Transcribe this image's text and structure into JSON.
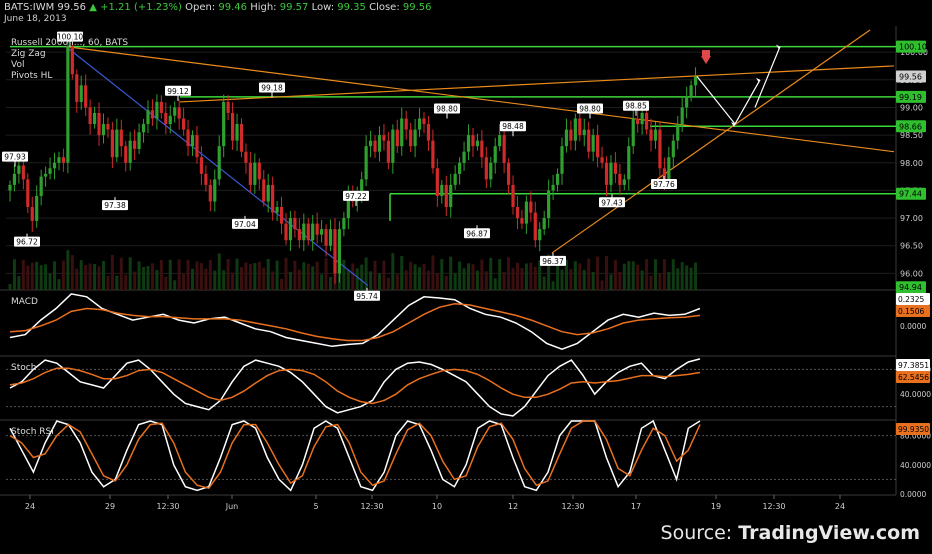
{
  "header": {
    "symbol": "BATS:IWM",
    "last": "99.56",
    "change": "+1.21 (+1.23%)",
    "open_label": "Open:",
    "open": "99.46",
    "high_label": "High:",
    "high": "99.57",
    "low_label": "Low:",
    "low": "99.35",
    "close_label": "Close:",
    "close": "99.56",
    "date": "June 18, 2013"
  },
  "source": {
    "prefix": "Source: ",
    "brand": "TradingView.com"
  },
  "colors": {
    "background": "#000000",
    "up_candle": "#2fa02f",
    "down_candle": "#d02a2a",
    "support_line": "#3ad83a",
    "trend_orange": "#e98a1c",
    "trend_blue": "#3a5ad8",
    "macd_line": "#ffffff",
    "signal_line": "#e8701e",
    "grid": "#1e1e1e"
  },
  "chart_data": [
    {
      "type": "candlestick",
      "title": "Russell 2000 I..., 60, BATS",
      "legend": [
        "Russell 2000 I..., 60, BATS",
        "Zig Zag",
        "Vol",
        "Pivots HL"
      ],
      "ylim": [
        95.7,
        100.4
      ],
      "y_ticks": [
        "96.00",
        "96.50",
        "97.00",
        "97.50",
        "98.00",
        "98.50",
        "99.00",
        "99.50",
        "100.00"
      ],
      "x_ticks": [
        "24",
        "29",
        "12:30",
        "Jun",
        "5",
        "12:30",
        "10",
        "12",
        "12:30",
        "17",
        "19",
        "12:30",
        "24"
      ],
      "closes": [
        97.6,
        97.8,
        97.95,
        97.7,
        97.2,
        96.95,
        97.4,
        97.75,
        97.8,
        97.9,
        98.0,
        98.1,
        98.0,
        100.1,
        99.6,
        99.1,
        99.4,
        99.0,
        98.7,
        98.9,
        98.5,
        98.7,
        98.6,
        98.1,
        98.6,
        98.3,
        98.0,
        98.4,
        98.25,
        98.55,
        98.7,
        98.95,
        98.8,
        99.1,
        98.9,
        98.7,
        98.85,
        99.0,
        98.8,
        98.6,
        98.3,
        98.5,
        98.1,
        97.8,
        97.6,
        97.3,
        97.7,
        98.3,
        99.1,
        98.9,
        98.4,
        98.7,
        98.2,
        98.0,
        97.6,
        98.0,
        97.7,
        97.3,
        97.6,
        97.1,
        97.2,
        96.9,
        96.6,
        97.0,
        96.8,
        96.6,
        96.9,
        96.6,
        96.9,
        96.7,
        96.8,
        96.5,
        96.8,
        96.0,
        96.8,
        97.0,
        97.4,
        97.3,
        97.45,
        97.7,
        98.3,
        98.4,
        98.2,
        98.5,
        98.4,
        98.0,
        98.6,
        98.3,
        98.8,
        98.6,
        98.3,
        98.6,
        98.8,
        98.7,
        98.4,
        97.9,
        97.4,
        97.6,
        97.2,
        97.6,
        97.8,
        98.0,
        98.2,
        98.5,
        98.3,
        98.4,
        98.1,
        97.7,
        98.0,
        98.3,
        98.5,
        98.0,
        97.6,
        97.2,
        97.0,
        96.9,
        97.3,
        97.1,
        96.6,
        96.8,
        97.0,
        97.5,
        97.6,
        97.8,
        98.3,
        98.6,
        98.4,
        98.8,
        98.5,
        98.6,
        98.2,
        98.5,
        98.1,
        98.0,
        97.6,
        98.0,
        97.8,
        97.6,
        97.7,
        98.3,
        98.8,
        98.7,
        98.9,
        98.6,
        98.4,
        98.6,
        97.9,
        97.7,
        98.1,
        98.4,
        98.7,
        99.0,
        99.2,
        99.4,
        99.56
      ],
      "last_price": "99.56",
      "pivots": [
        {
          "label": "97.93",
          "value": 97.93,
          "kind": "high"
        },
        {
          "label": "96.72",
          "value": 96.72,
          "kind": "low"
        },
        {
          "label": "100.10",
          "value": 100.1,
          "kind": "high"
        },
        {
          "label": "97.38",
          "value": 97.38,
          "kind": "low"
        },
        {
          "label": "99.12",
          "value": 99.12,
          "kind": "high"
        },
        {
          "label": "99.18",
          "value": 99.18,
          "kind": "high"
        },
        {
          "label": "97.04",
          "value": 97.04,
          "kind": "low"
        },
        {
          "label": "97.22",
          "value": 97.22,
          "kind": "high"
        },
        {
          "label": "95.74",
          "value": 95.74,
          "kind": "low"
        },
        {
          "label": "96.87",
          "value": 96.87,
          "kind": "low"
        },
        {
          "label": "98.80",
          "value": 98.8,
          "kind": "high"
        },
        {
          "label": "98.48",
          "value": 98.48,
          "kind": "high"
        },
        {
          "label": "96.37",
          "value": 96.37,
          "kind": "low"
        },
        {
          "label": "98.80",
          "value": 98.8,
          "kind": "high"
        },
        {
          "label": "97.43",
          "value": 97.43,
          "kind": "low"
        },
        {
          "label": "98.85",
          "value": 98.85,
          "kind": "high"
        },
        {
          "label": "97.76",
          "value": 97.76,
          "kind": "low"
        }
      ],
      "axis_badges": [
        {
          "label": "100.10",
          "value": 100.1,
          "color": "#2fbf2f"
        },
        {
          "label": "99.56",
          "value": 99.56,
          "color": "#cfcfcf"
        },
        {
          "label": "99.19",
          "value": 99.19,
          "color": "#2fbf2f"
        },
        {
          "label": "98.66",
          "value": 98.66,
          "color": "#2fbf2f"
        },
        {
          "label": "97.44",
          "value": 97.44,
          "color": "#2fbf2f"
        },
        {
          "label": "94.94",
          "value": 95.75,
          "color": "#2fbf2f"
        }
      ]
    },
    {
      "type": "line",
      "title": "MACD",
      "series": [
        {
          "values": [
            -0.2,
            -0.15,
            0.1,
            0.3,
            0.55,
            0.5,
            0.3,
            0.2,
            0.1,
            0.15,
            0.2,
            0.1,
            0.05,
            0.12,
            0.15,
            0.05,
            -0.05,
            -0.1,
            -0.2,
            -0.25,
            -0.3,
            -0.35,
            -0.32,
            -0.3,
            -0.15,
            0.1,
            0.35,
            0.5,
            0.48,
            0.45,
            0.3,
            0.2,
            0.15,
            0.05,
            -0.1,
            -0.3,
            -0.4,
            -0.3,
            -0.1,
            0.1,
            0.2,
            0.15,
            0.22,
            0.18,
            0.2,
            0.3
          ]
        },
        {
          "values": [
            -0.1,
            -0.08,
            0.0,
            0.1,
            0.25,
            0.3,
            0.28,
            0.22,
            0.18,
            0.16,
            0.16,
            0.14,
            0.12,
            0.12,
            0.12,
            0.1,
            0.05,
            0.0,
            -0.05,
            -0.12,
            -0.18,
            -0.22,
            -0.25,
            -0.25,
            -0.2,
            -0.1,
            0.05,
            0.2,
            0.32,
            0.38,
            0.36,
            0.3,
            0.24,
            0.18,
            0.1,
            0.0,
            -0.1,
            -0.15,
            -0.12,
            -0.05,
            0.05,
            0.1,
            0.12,
            0.14,
            0.15,
            0.18
          ]
        }
      ],
      "axis_badges": [
        {
          "label": "0.2325",
          "color": "#ffffff"
        },
        {
          "label": "0.1506",
          "color": "#e8701e"
        }
      ],
      "y_ticks": [
        "0.0000"
      ]
    },
    {
      "type": "line",
      "title": "Stoch",
      "series": [
        {
          "values": [
            50,
            60,
            80,
            95,
            90,
            75,
            60,
            55,
            50,
            70,
            90,
            95,
            80,
            60,
            40,
            25,
            20,
            15,
            30,
            60,
            85,
            95,
            90,
            85,
            75,
            60,
            40,
            20,
            10,
            15,
            20,
            30,
            60,
            80,
            90,
            92,
            88,
            80,
            70,
            60,
            40,
            20,
            8,
            5,
            20,
            45,
            70,
            85,
            95,
            70,
            40,
            60,
            75,
            85,
            90,
            70,
            65,
            80,
            92,
            97
          ]
        },
        {
          "values": [
            55,
            58,
            65,
            75,
            82,
            82,
            78,
            72,
            65,
            65,
            70,
            78,
            80,
            75,
            65,
            55,
            45,
            35,
            30,
            35,
            45,
            58,
            70,
            78,
            80,
            78,
            72,
            60,
            45,
            35,
            28,
            25,
            30,
            40,
            55,
            65,
            72,
            78,
            80,
            78,
            72,
            62,
            50,
            40,
            35,
            35,
            40,
            48,
            58,
            60,
            58,
            60,
            62,
            66,
            70,
            70,
            68,
            70,
            72,
            75
          ]
        }
      ],
      "axis_badges": [
        {
          "label": "97.3851",
          "color": "#ffffff"
        },
        {
          "label": "62.5456",
          "color": "#e8701e"
        }
      ],
      "y_ticks": [
        "80.0000",
        "40.0000"
      ]
    },
    {
      "type": "line",
      "title": "Stoch RSI",
      "series": [
        {
          "values": [
            90,
            60,
            30,
            70,
            100,
            95,
            70,
            30,
            10,
            20,
            60,
            95,
            100,
            95,
            40,
            10,
            5,
            10,
            50,
            95,
            100,
            90,
            50,
            20,
            5,
            40,
            90,
            100,
            90,
            50,
            10,
            5,
            30,
            80,
            100,
            95,
            60,
            20,
            10,
            40,
            90,
            100,
            95,
            50,
            10,
            5,
            30,
            80,
            100,
            100,
            100,
            50,
            10,
            30,
            90,
            100,
            60,
            20,
            90,
            100
          ]
        },
        {
          "values": [
            80,
            70,
            50,
            55,
            80,
            95,
            85,
            55,
            25,
            18,
            40,
            75,
            95,
            97,
            70,
            30,
            12,
            8,
            30,
            70,
            95,
            95,
            70,
            40,
            15,
            25,
            65,
            92,
            95,
            70,
            30,
            12,
            18,
            55,
            88,
            97,
            80,
            45,
            20,
            25,
            65,
            92,
            97,
            75,
            35,
            12,
            18,
            55,
            90,
            100,
            100,
            75,
            35,
            25,
            60,
            90,
            80,
            45,
            60,
            95
          ]
        }
      ],
      "axis_badges": [
        {
          "label": "99.9350",
          "color": "#e8701e"
        }
      ],
      "y_ticks": [
        "80.0000",
        "40.0000",
        "0.0000"
      ]
    }
  ]
}
